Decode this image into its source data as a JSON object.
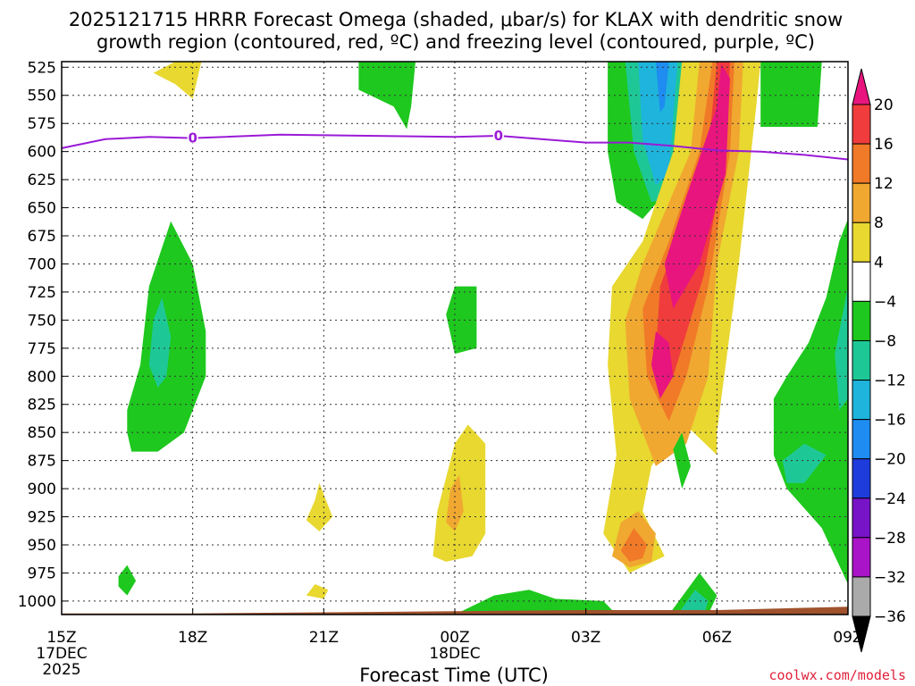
{
  "title_line1": "2025121715 HRRR Forecast Omega (shaded, μbar/s) for KLAX with dendritic snow",
  "title_line2": "growth region (contoured, red, ºC) and freezing level (contoured, purple, ºC)",
  "xlabel": "Forecast Time (UTC)",
  "credit": "coolwx.com/models",
  "colors": {
    "freezing_line": "#9a1ad6",
    "terrain": "#a0522d",
    "grid": "#333333"
  },
  "chart_data": {
    "type": "contour-time-height",
    "title": "2025121715 HRRR Forecast Omega for KLAX",
    "x_unit": "hours since 2025-12-17 15Z",
    "x_range": [
      0,
      18
    ],
    "y_unit": "hPa",
    "y_range": [
      1012,
      520
    ],
    "y_ticks": [
      "525",
      "550",
      "575",
      "600",
      "625",
      "650",
      "675",
      "700",
      "725",
      "750",
      "775",
      "800",
      "825",
      "850",
      "875",
      "900",
      "925",
      "950",
      "975",
      "1000"
    ],
    "x_ticks": [
      {
        "hour": 0,
        "label": "15Z",
        "sub1": "17DEC",
        "sub2": "2025"
      },
      {
        "hour": 3,
        "label": "18Z",
        "sub1": "",
        "sub2": ""
      },
      {
        "hour": 6,
        "label": "21Z",
        "sub1": "",
        "sub2": ""
      },
      {
        "hour": 9,
        "label": "00Z",
        "sub1": "18DEC",
        "sub2": ""
      },
      {
        "hour": 12,
        "label": "03Z",
        "sub1": "",
        "sub2": ""
      },
      {
        "hour": 15,
        "label": "06Z",
        "sub1": "",
        "sub2": ""
      },
      {
        "hour": 18,
        "label": "09Z",
        "sub1": "",
        "sub2": ""
      }
    ],
    "colorbar": {
      "levels": [
        "20",
        "16",
        "12",
        "8",
        "4",
        "−4",
        "−8",
        "−12",
        "−16",
        "−20",
        "−24",
        "−28",
        "−32",
        "−36"
      ],
      "colors": [
        "#e8157e",
        "#f03c3c",
        "#f07a28",
        "#f0a830",
        "#e8d830",
        "#ffffff",
        "#1ec81e",
        "#1ec896",
        "#1eb4dc",
        "#1e8cf0",
        "#1e3cdc",
        "#7814c8",
        "#aa14c8",
        "#aaaaaa",
        "#000000"
      ]
    },
    "freezing_level": {
      "label": "0",
      "label_hours": [
        3,
        10
      ],
      "points": [
        [
          0,
          597
        ],
        [
          1,
          589
        ],
        [
          2,
          587
        ],
        [
          3,
          588
        ],
        [
          5,
          585
        ],
        [
          7,
          586
        ],
        [
          9,
          587
        ],
        [
          10,
          586
        ],
        [
          12,
          592
        ],
        [
          13,
          592
        ],
        [
          14,
          595
        ],
        [
          15,
          599
        ],
        [
          16,
          600
        ],
        [
          17,
          603
        ],
        [
          18,
          607
        ]
      ]
    },
    "terrain": {
      "points": [
        [
          0,
          1011
        ],
        [
          3,
          1011
        ],
        [
          6,
          1010
        ],
        [
          9,
          1009
        ],
        [
          12,
          1008
        ],
        [
          15,
          1008
        ],
        [
          18,
          1005
        ]
      ]
    },
    "regions": [
      {
        "name": "upper-yellow-blob",
        "level": "4",
        "points": [
          [
            2.1,
            530
          ],
          [
            2.6,
            520
          ],
          [
            3.2,
            520
          ],
          [
            3.0,
            553
          ],
          [
            2.6,
            540
          ]
        ]
      },
      {
        "name": "upper-green-blob",
        "level": "-4",
        "points": [
          [
            6.8,
            520
          ],
          [
            8.1,
            520
          ],
          [
            8.0,
            560
          ],
          [
            7.9,
            580
          ],
          [
            7.6,
            560
          ],
          [
            6.8,
            545
          ]
        ]
      },
      {
        "name": "upper-right-green-block",
        "level": "-4",
        "points": [
          [
            16.0,
            520
          ],
          [
            17.4,
            520
          ],
          [
            17.3,
            578
          ],
          [
            16.0,
            578
          ]
        ]
      },
      {
        "name": "left-green-column",
        "level": "-4",
        "points": [
          [
            1.5,
            850
          ],
          [
            1.5,
            830
          ],
          [
            1.8,
            790
          ],
          [
            2.0,
            720
          ],
          [
            2.5,
            662
          ],
          [
            3.0,
            700
          ],
          [
            3.3,
            760
          ],
          [
            3.3,
            800
          ],
          [
            2.8,
            850
          ],
          [
            2.2,
            867
          ],
          [
            1.6,
            867
          ]
        ]
      },
      {
        "name": "left-teal-core",
        "level": "-8",
        "points": [
          [
            2.0,
            790
          ],
          [
            2.1,
            750
          ],
          [
            2.3,
            730
          ],
          [
            2.5,
            765
          ],
          [
            2.4,
            800
          ],
          [
            2.2,
            810
          ]
        ]
      },
      {
        "name": "small-green-dot",
        "level": "-4",
        "points": [
          [
            1.3,
            978
          ],
          [
            1.5,
            968
          ],
          [
            1.7,
            982
          ],
          [
            1.5,
            995
          ],
          [
            1.3,
            987
          ]
        ]
      },
      {
        "name": "mid-green-blob",
        "level": "-4",
        "points": [
          [
            8.8,
            745
          ],
          [
            9.0,
            720
          ],
          [
            9.5,
            720
          ],
          [
            9.5,
            775
          ],
          [
            9.0,
            780
          ]
        ]
      },
      {
        "name": "small-yellow-mid",
        "level": "4",
        "points": [
          [
            5.6,
            928
          ],
          [
            5.8,
            910
          ],
          [
            5.9,
            895
          ],
          [
            6.2,
            925
          ],
          [
            5.9,
            938
          ]
        ]
      },
      {
        "name": "small-yellow-low",
        "level": "4",
        "points": [
          [
            5.6,
            995
          ],
          [
            5.8,
            985
          ],
          [
            6.1,
            990
          ],
          [
            6.0,
            998
          ]
        ]
      },
      {
        "name": "yellow-blob-00z",
        "level": "4",
        "points": [
          [
            8.5,
            960
          ],
          [
            8.6,
            920
          ],
          [
            9.0,
            860
          ],
          [
            9.3,
            843
          ],
          [
            9.7,
            860
          ],
          [
            9.7,
            940
          ],
          [
            9.4,
            960
          ],
          [
            8.8,
            965
          ]
        ]
      },
      {
        "name": "orange-blob-00z",
        "level": "8",
        "points": [
          [
            8.8,
            930
          ],
          [
            8.9,
            900
          ],
          [
            9.1,
            888
          ],
          [
            9.2,
            920
          ],
          [
            9.0,
            938
          ]
        ]
      },
      {
        "name": "right-green-block",
        "level": "-4",
        "points": [
          [
            12.5,
            520
          ],
          [
            14.3,
            520
          ],
          [
            14.2,
            620
          ],
          [
            13.3,
            660
          ],
          [
            12.7,
            645
          ],
          [
            12.5,
            600
          ]
        ]
      },
      {
        "name": "right-teal-block",
        "level": "-8",
        "points": [
          [
            12.9,
            520
          ],
          [
            14.2,
            520
          ],
          [
            14.0,
            640
          ],
          [
            13.5,
            645
          ],
          [
            13.1,
            600
          ]
        ]
      },
      {
        "name": "right-cyan-block",
        "level": "-12",
        "points": [
          [
            13.2,
            520
          ],
          [
            14.1,
            520
          ],
          [
            13.9,
            620
          ],
          [
            13.6,
            630
          ],
          [
            13.3,
            590
          ]
        ]
      },
      {
        "name": "right-blue-block",
        "level": "-16",
        "points": [
          [
            13.6,
            520
          ],
          [
            13.9,
            520
          ],
          [
            13.8,
            560
          ],
          [
            13.7,
            565
          ]
        ]
      },
      {
        "name": "main-yellow-band",
        "level": "4",
        "points": [
          [
            14.0,
            600
          ],
          [
            14.2,
            520
          ],
          [
            16.0,
            520
          ],
          [
            15.9,
            560
          ],
          [
            15.5,
            700
          ],
          [
            15.2,
            790
          ],
          [
            15.0,
            850
          ],
          [
            15.0,
            870
          ],
          [
            14.2,
            840
          ],
          [
            13.5,
            880
          ],
          [
            13.3,
            920
          ],
          [
            13.8,
            960
          ],
          [
            13.0,
            975
          ],
          [
            12.4,
            940
          ],
          [
            12.7,
            870
          ],
          [
            12.5,
            790
          ],
          [
            12.6,
            720
          ],
          [
            13.3,
            680
          ]
        ]
      },
      {
        "name": "main-orange-band",
        "level": "8",
        "points": [
          [
            14.4,
            600
          ],
          [
            14.6,
            520
          ],
          [
            15.6,
            520
          ],
          [
            15.5,
            600
          ],
          [
            15.0,
            700
          ],
          [
            14.8,
            800
          ],
          [
            14.3,
            860
          ],
          [
            13.6,
            880
          ],
          [
            13.0,
            820
          ],
          [
            12.9,
            750
          ],
          [
            13.3,
            700
          ]
        ]
      },
      {
        "name": "main-red-band",
        "level": "12",
        "points": [
          [
            14.6,
            600
          ],
          [
            14.9,
            520
          ],
          [
            15.4,
            520
          ],
          [
            15.3,
            600
          ],
          [
            14.8,
            720
          ],
          [
            14.3,
            800
          ],
          [
            13.9,
            840
          ],
          [
            13.4,
            800
          ],
          [
            13.3,
            740
          ],
          [
            13.9,
            680
          ]
        ]
      },
      {
        "name": "main-tomato-band",
        "level": "16",
        "points": [
          [
            14.8,
            600
          ],
          [
            15.0,
            520
          ],
          [
            15.3,
            520
          ],
          [
            15.2,
            600
          ],
          [
            14.7,
            710
          ],
          [
            14.0,
            800
          ],
          [
            13.6,
            780
          ],
          [
            13.7,
            720
          ]
        ]
      },
      {
        "name": "main-magenta-core",
        "level": "20",
        "points": [
          [
            15.0,
            560
          ],
          [
            15.1,
            522
          ],
          [
            15.3,
            535
          ],
          [
            15.2,
            620
          ],
          [
            14.6,
            700
          ],
          [
            14.0,
            740
          ],
          [
            13.8,
            700
          ],
          [
            14.3,
            640
          ]
        ]
      },
      {
        "name": "lower-magenta-core",
        "level": "20",
        "points": [
          [
            13.5,
            790
          ],
          [
            13.6,
            760
          ],
          [
            13.9,
            770
          ],
          [
            14.0,
            800
          ],
          [
            13.7,
            820
          ]
        ]
      },
      {
        "name": "lower-yellow-blob",
        "level": "8",
        "points": [
          [
            12.6,
            960
          ],
          [
            12.8,
            930
          ],
          [
            13.2,
            920
          ],
          [
            13.6,
            940
          ],
          [
            13.5,
            965
          ],
          [
            13.0,
            970
          ]
        ]
      },
      {
        "name": "lower-orange-blob",
        "level": "12",
        "points": [
          [
            12.8,
            955
          ],
          [
            13.1,
            935
          ],
          [
            13.4,
            950
          ],
          [
            13.3,
            962
          ],
          [
            13.0,
            965
          ]
        ]
      },
      {
        "name": "lower-green-strip",
        "level": "-4",
        "points": [
          [
            8.0,
            1012
          ],
          [
            9.0,
            1012
          ],
          [
            9.9,
            995
          ],
          [
            10.7,
            990
          ],
          [
            11.3,
            998
          ],
          [
            12.4,
            1000
          ],
          [
            12.7,
            1012
          ]
        ]
      },
      {
        "name": "small-green-pillar",
        "level": "-4",
        "points": [
          [
            14.0,
            865
          ],
          [
            14.2,
            850
          ],
          [
            14.4,
            880
          ],
          [
            14.2,
            900
          ]
        ]
      },
      {
        "name": "lower-green-triangle",
        "level": "-4",
        "points": [
          [
            13.9,
            1012
          ],
          [
            14.6,
            975
          ],
          [
            15.0,
            995
          ],
          [
            14.8,
            1012
          ]
        ]
      },
      {
        "name": "lower-teal-triangle",
        "level": "-8",
        "points": [
          [
            14.1,
            1012
          ],
          [
            14.5,
            990
          ],
          [
            14.8,
            1000
          ],
          [
            14.7,
            1012
          ]
        ]
      },
      {
        "name": "right-lower-green",
        "level": "-4",
        "points": [
          [
            16.3,
            820
          ],
          [
            16.6,
            800
          ],
          [
            17.1,
            770
          ],
          [
            17.5,
            730
          ],
          [
            17.8,
            680
          ],
          [
            18.0,
            660
          ],
          [
            18.0,
            985
          ],
          [
            17.4,
            935
          ],
          [
            16.6,
            900
          ],
          [
            16.3,
            870
          ]
        ]
      },
      {
        "name": "right-lower-teal",
        "level": "-8",
        "points": [
          [
            16.5,
            875
          ],
          [
            17.0,
            860
          ],
          [
            17.5,
            870
          ],
          [
            17.0,
            895
          ],
          [
            16.6,
            895
          ]
        ]
      },
      {
        "name": "right-edge-teal",
        "level": "-8",
        "points": [
          [
            17.7,
            780
          ],
          [
            18.0,
            720
          ],
          [
            18.0,
            820
          ],
          [
            17.8,
            830
          ]
        ]
      }
    ]
  }
}
